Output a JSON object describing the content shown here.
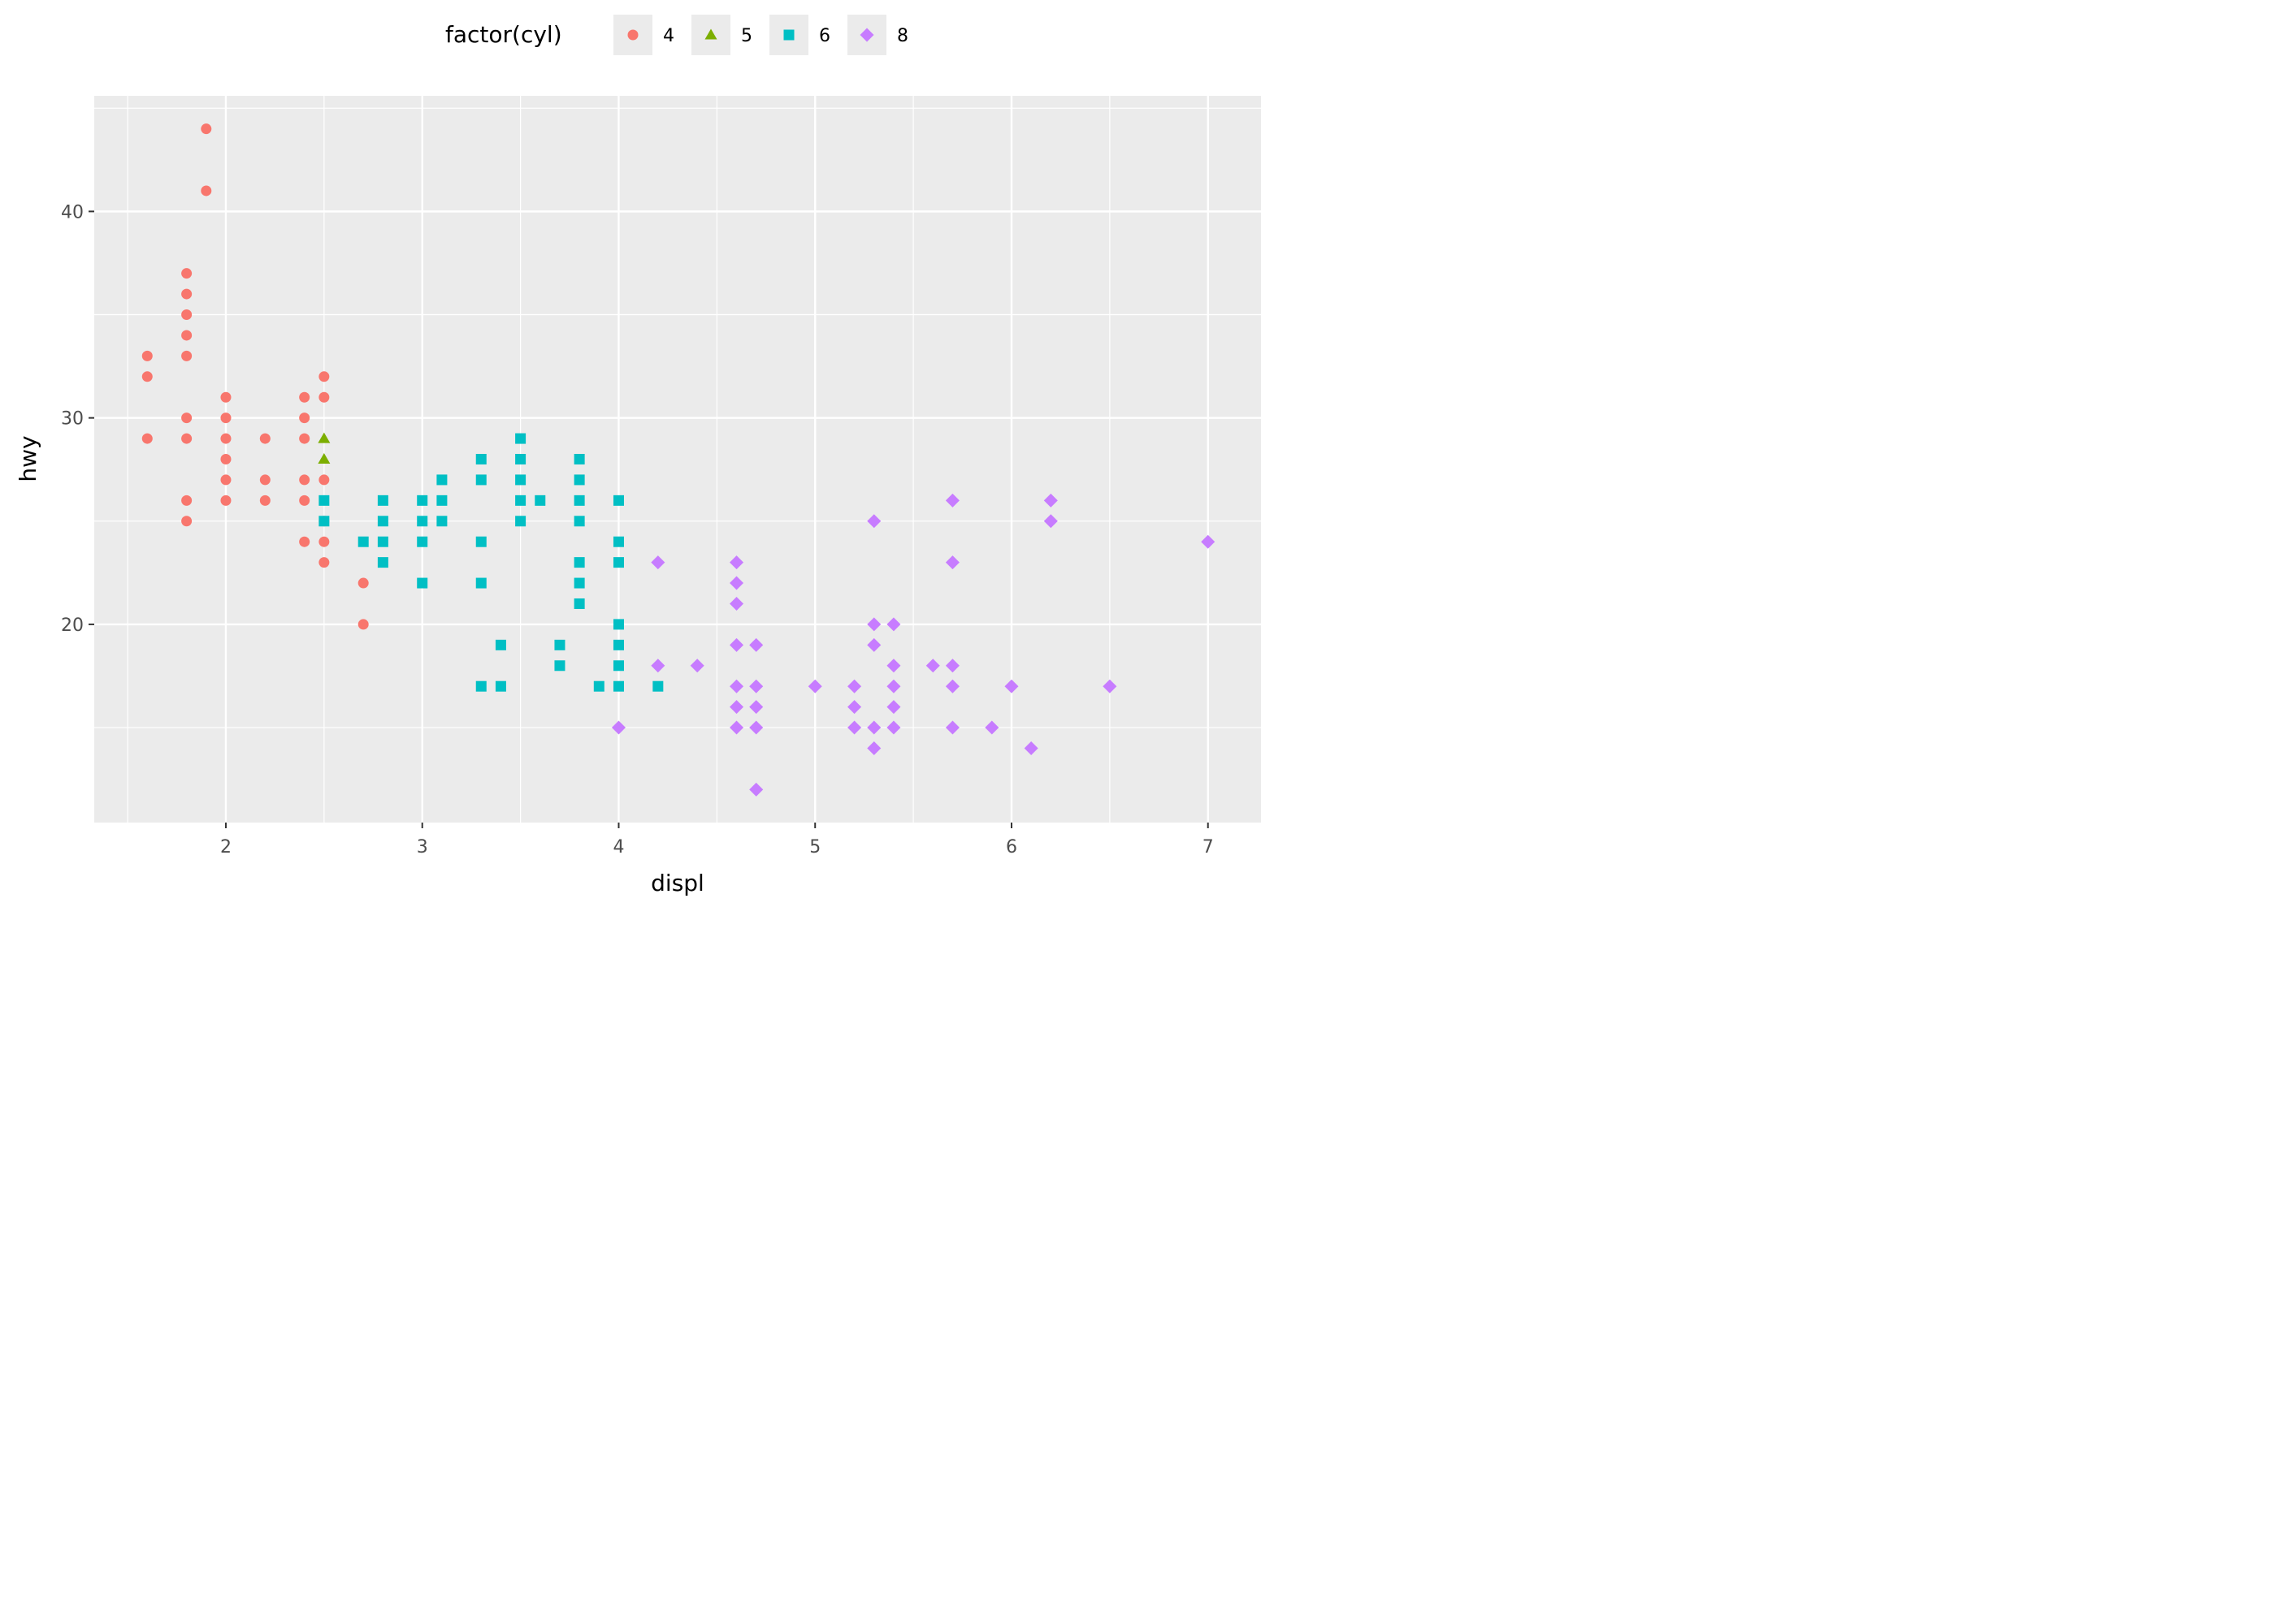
{
  "chart_data": {
    "type": "scatter",
    "xlabel": "displ",
    "ylabel": "hwy",
    "xlim": [
      1.33,
      7.27
    ],
    "ylim": [
      10.4,
      45.6
    ],
    "x_ticks": [
      2,
      3,
      4,
      5,
      6,
      7
    ],
    "y_ticks": [
      20,
      30,
      40
    ],
    "x_tick_labels": [
      "2",
      "3",
      "4",
      "5",
      "6",
      "7"
    ],
    "y_tick_labels": [
      "20",
      "30",
      "40"
    ],
    "grid": true,
    "legend": {
      "title": "factor(cyl)",
      "position": "top",
      "entries": [
        {
          "label": "4",
          "color": "#F8766D",
          "shape": "circle"
        },
        {
          "label": "5",
          "color": "#7CAE00",
          "shape": "triangle"
        },
        {
          "label": "6",
          "color": "#00BFC4",
          "shape": "square"
        },
        {
          "label": "8",
          "color": "#C77CFF",
          "shape": "diamond"
        }
      ]
    },
    "series": [
      {
        "name": "4",
        "color": "#F8766D",
        "shape": "circle",
        "points": [
          [
            1.6,
            33
          ],
          [
            1.6,
            32
          ],
          [
            1.6,
            29
          ],
          [
            1.8,
            37
          ],
          [
            1.8,
            36
          ],
          [
            1.8,
            35
          ],
          [
            1.8,
            34
          ],
          [
            1.8,
            33
          ],
          [
            1.8,
            30
          ],
          [
            1.8,
            29
          ],
          [
            1.8,
            26
          ],
          [
            1.8,
            25
          ],
          [
            1.9,
            44
          ],
          [
            1.9,
            41
          ],
          [
            2.0,
            31
          ],
          [
            2.0,
            30
          ],
          [
            2.0,
            29
          ],
          [
            2.0,
            28
          ],
          [
            2.0,
            27
          ],
          [
            2.0,
            26
          ],
          [
            2.2,
            29
          ],
          [
            2.2,
            27
          ],
          [
            2.2,
            26
          ],
          [
            2.4,
            31
          ],
          [
            2.4,
            30
          ],
          [
            2.4,
            29
          ],
          [
            2.4,
            27
          ],
          [
            2.4,
            26
          ],
          [
            2.4,
            24
          ],
          [
            2.5,
            32
          ],
          [
            2.5,
            31
          ],
          [
            2.5,
            27
          ],
          [
            2.5,
            25
          ],
          [
            2.5,
            24
          ],
          [
            2.5,
            23
          ],
          [
            2.7,
            22
          ],
          [
            2.7,
            20
          ]
        ]
      },
      {
        "name": "5",
        "color": "#7CAE00",
        "shape": "triangle",
        "points": [
          [
            2.5,
            29
          ],
          [
            2.5,
            28
          ]
        ]
      },
      {
        "name": "6",
        "color": "#00BFC4",
        "shape": "square",
        "points": [
          [
            2.5,
            26
          ],
          [
            2.5,
            25
          ],
          [
            2.7,
            24
          ],
          [
            2.8,
            26
          ],
          [
            2.8,
            25
          ],
          [
            2.8,
            24
          ],
          [
            2.8,
            23
          ],
          [
            3.0,
            26
          ],
          [
            3.0,
            25
          ],
          [
            3.0,
            24
          ],
          [
            3.0,
            22
          ],
          [
            3.1,
            27
          ],
          [
            3.1,
            26
          ],
          [
            3.1,
            25
          ],
          [
            3.3,
            28
          ],
          [
            3.3,
            27
          ],
          [
            3.3,
            24
          ],
          [
            3.3,
            22
          ],
          [
            3.3,
            17
          ],
          [
            3.4,
            19
          ],
          [
            3.4,
            17
          ],
          [
            3.5,
            29
          ],
          [
            3.5,
            28
          ],
          [
            3.5,
            27
          ],
          [
            3.5,
            26
          ],
          [
            3.5,
            25
          ],
          [
            3.6,
            26
          ],
          [
            3.7,
            19
          ],
          [
            3.7,
            18
          ],
          [
            3.8,
            28
          ],
          [
            3.8,
            27
          ],
          [
            3.8,
            26
          ],
          [
            3.8,
            25
          ],
          [
            3.8,
            23
          ],
          [
            3.8,
            22
          ],
          [
            3.8,
            21
          ],
          [
            3.9,
            17
          ],
          [
            4.0,
            26
          ],
          [
            4.0,
            24
          ],
          [
            4.0,
            23
          ],
          [
            4.0,
            20
          ],
          [
            4.0,
            19
          ],
          [
            4.0,
            18
          ],
          [
            4.0,
            17
          ],
          [
            4.2,
            17
          ]
        ]
      },
      {
        "name": "8",
        "color": "#C77CFF",
        "shape": "diamond",
        "points": [
          [
            4.0,
            15
          ],
          [
            4.2,
            23
          ],
          [
            4.2,
            18
          ],
          [
            4.4,
            18
          ],
          [
            4.6,
            23
          ],
          [
            4.6,
            22
          ],
          [
            4.6,
            21
          ],
          [
            4.6,
            19
          ],
          [
            4.6,
            17
          ],
          [
            4.6,
            16
          ],
          [
            4.6,
            15
          ],
          [
            4.7,
            19
          ],
          [
            4.7,
            17
          ],
          [
            4.7,
            16
          ],
          [
            4.7,
            15
          ],
          [
            4.7,
            12
          ],
          [
            5.0,
            17
          ],
          [
            5.2,
            17
          ],
          [
            5.2,
            16
          ],
          [
            5.2,
            15
          ],
          [
            5.3,
            25
          ],
          [
            5.3,
            20
          ],
          [
            5.3,
            19
          ],
          [
            5.3,
            15
          ],
          [
            5.3,
            14
          ],
          [
            5.4,
            20
          ],
          [
            5.4,
            18
          ],
          [
            5.4,
            17
          ],
          [
            5.4,
            16
          ],
          [
            5.4,
            15
          ],
          [
            5.6,
            18
          ],
          [
            5.7,
            26
          ],
          [
            5.7,
            23
          ],
          [
            5.7,
            18
          ],
          [
            5.7,
            17
          ],
          [
            5.7,
            15
          ],
          [
            5.9,
            15
          ],
          [
            6.0,
            17
          ],
          [
            6.1,
            14
          ],
          [
            6.2,
            26
          ],
          [
            6.2,
            25
          ],
          [
            6.5,
            17
          ],
          [
            7.0,
            24
          ]
        ]
      }
    ]
  }
}
